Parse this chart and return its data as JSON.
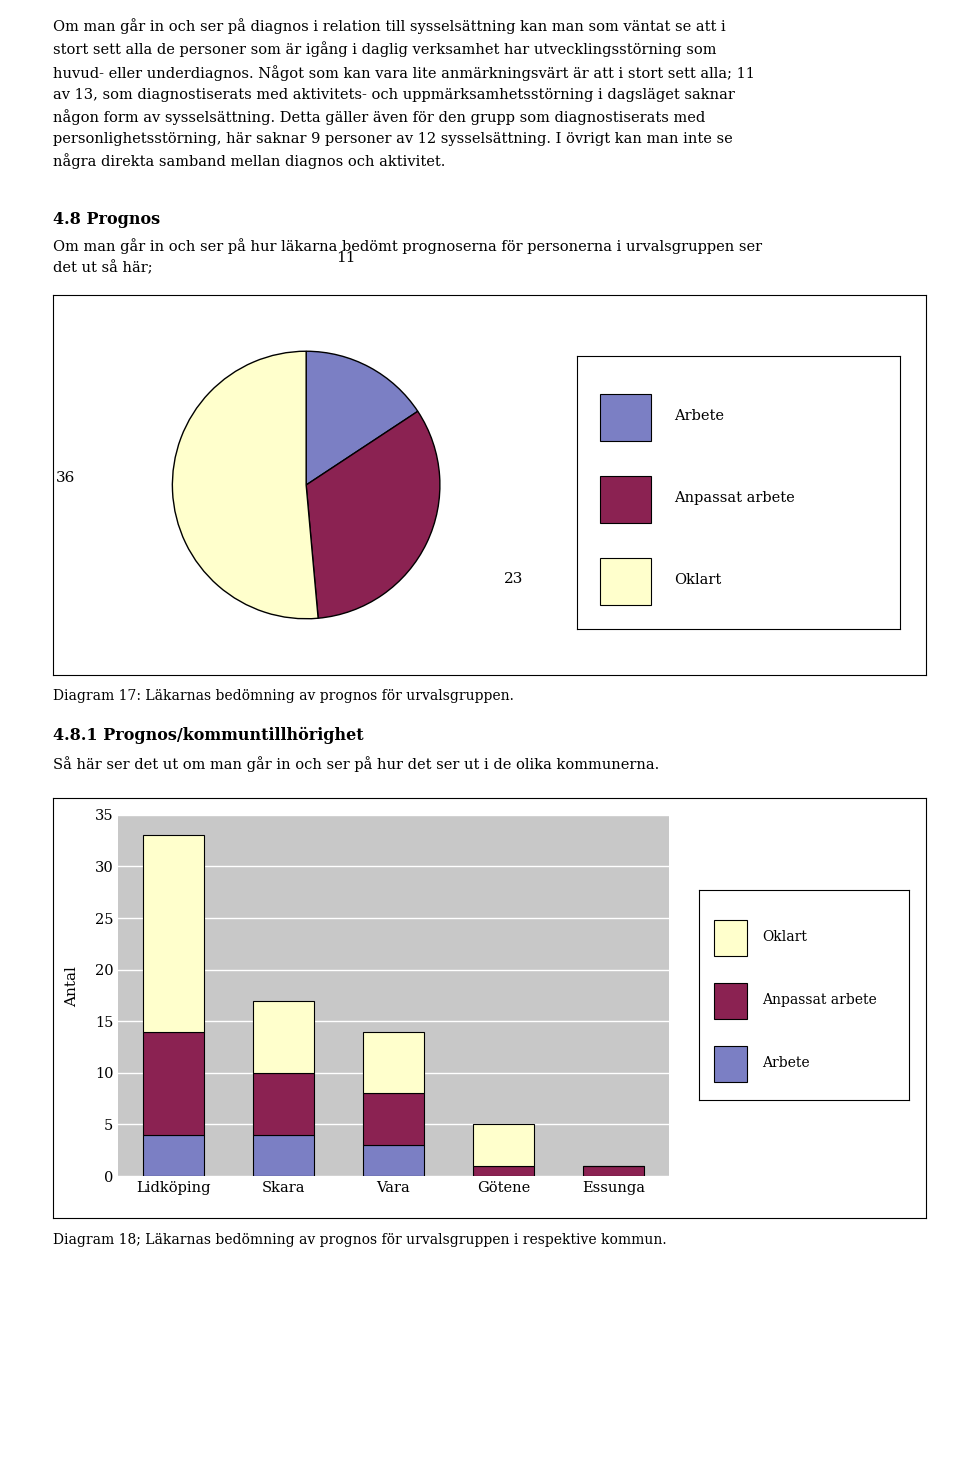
{
  "para0": "Om man går in och ser på diagnos i relation till sysselsättning kan man som väntat se att i\nstort sett alla de personer som är igång i daglig verksamhet har utvecklingsstörning som\nhuvud- eller underdiagnos. Något som kan vara lite anmärkningsvärt är att i stort sett alla; 11\nav 13, som diagnostiserats med aktivitets- och uppmärksamhetsstörning i dagsläget saknar\nnågon form av sysselsättning. Detta gäller även för den grupp som diagnostiserats med\npersonlighetsstörning, här saknar 9 personer av 12 sysselsättning. I övrigt kan man inte se\nnågra direkta samband mellan diagnos och aktivitet.",
  "section_4_8_title": "4.8 Prognos",
  "section_4_8_text": "Om man går in och ser på hur läkarna bedömt prognoserna för personerna i urvalsgruppen ser\ndet ut så här;",
  "pie_values": [
    11,
    23,
    36
  ],
  "pie_colors": [
    "#7b7fc4",
    "#8b2252",
    "#ffffcc"
  ],
  "pie_legend_labels": [
    "Arbete",
    "Anpassat arbete",
    "Oklart"
  ],
  "pie_legend_colors": [
    "#7b7fc4",
    "#8b2252",
    "#ffffcc"
  ],
  "diagram17_caption": "Diagram 17: Läkarnas bedömning av prognos för urvalsgruppen.",
  "section_4_8_1_title": "4.8.1 Prognos/kommuntillhörighet",
  "section_4_8_1_text": "Så här ser det ut om man går in och ser på hur det ser ut i de olika kommunerna.",
  "bar_categories": [
    "Lidköping",
    "Skara",
    "Vara",
    "Götene",
    "Essunga"
  ],
  "bar_arbete": [
    4,
    4,
    3,
    0,
    0
  ],
  "bar_anpassat_arbete": [
    10,
    6,
    5,
    1,
    1
  ],
  "bar_oklart": [
    19,
    7,
    6,
    4,
    0
  ],
  "bar_color_arbete": "#7b7fc4",
  "bar_color_anpassat": "#8b2252",
  "bar_color_oklart": "#ffffcc",
  "bar_ylim": [
    0,
    35
  ],
  "bar_yticks": [
    0,
    5,
    10,
    15,
    20,
    25,
    30,
    35
  ],
  "bar_ylabel": "Antal",
  "diagram18_caption": "Diagram 18; Läkarnas bedömning av prognos för urvalsgruppen i respektive kommun.",
  "bg_gray": "#c8c8c8"
}
